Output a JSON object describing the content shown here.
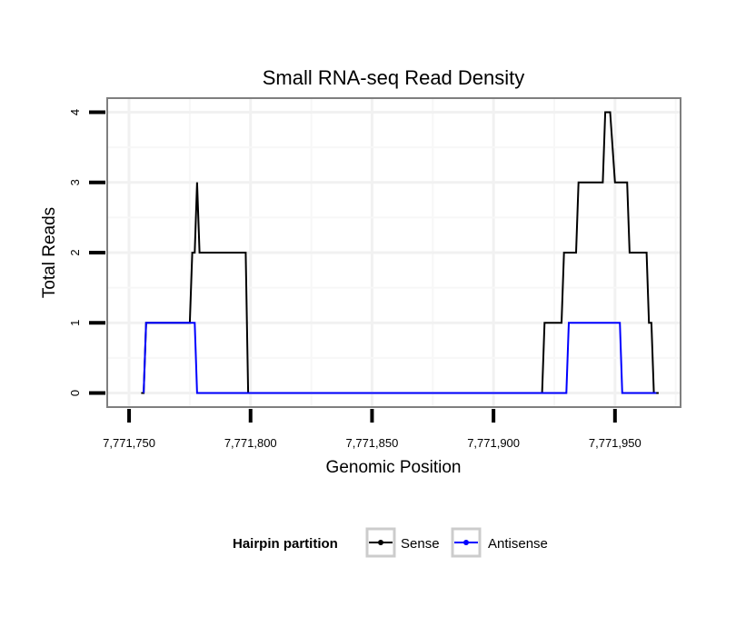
{
  "chart_data": {
    "type": "line",
    "title": "Small RNA-seq Read Density",
    "xlabel": "Genomic Position",
    "ylabel": "Total Reads",
    "xlim": [
      7771741,
      7771977
    ],
    "ylim": [
      -0.2,
      4.2
    ],
    "x_ticks": [
      7771750,
      7771800,
      7771850,
      7771900,
      7771950
    ],
    "x_tick_labels": [
      "7,771,750",
      "7,771,800",
      "7,771,850",
      "7,771,900",
      "7,771,950"
    ],
    "y_ticks": [
      0,
      1,
      2,
      3,
      4
    ],
    "y_tick_labels": [
      "0",
      "1",
      "2",
      "3",
      "4"
    ],
    "grid": true,
    "legend": {
      "title": "Hairpin partition",
      "position": "bottom"
    },
    "series": [
      {
        "name": "Sense",
        "color": "#000000",
        "x": [
          7771755,
          7771756,
          7771757,
          7771775,
          7771776,
          7771777,
          7771778,
          7771779,
          7771798,
          7771799,
          7771920,
          7771921,
          7771928,
          7771929,
          7771934,
          7771935,
          7771941,
          7771942,
          7771945,
          7771946,
          7771947,
          7771948,
          7771950,
          7771951,
          7771955,
          7771956,
          7771963,
          7771964,
          7771965,
          7771966,
          7771968
        ],
        "y": [
          0,
          0,
          1,
          1,
          2,
          2,
          3,
          2,
          2,
          0,
          0,
          1,
          1,
          2,
          2,
          3,
          3,
          3,
          3,
          4,
          4,
          4,
          3,
          3,
          3,
          2,
          2,
          1,
          1,
          0,
          0
        ]
      },
      {
        "name": "Antisense",
        "color": "#0000ff",
        "x": [
          7771756,
          7771757,
          7771777,
          7771778,
          7771799,
          7771930,
          7771931,
          7771952,
          7771953,
          7771967
        ],
        "y": [
          0,
          1,
          1,
          0,
          0,
          0,
          1,
          1,
          0,
          0
        ]
      }
    ]
  }
}
